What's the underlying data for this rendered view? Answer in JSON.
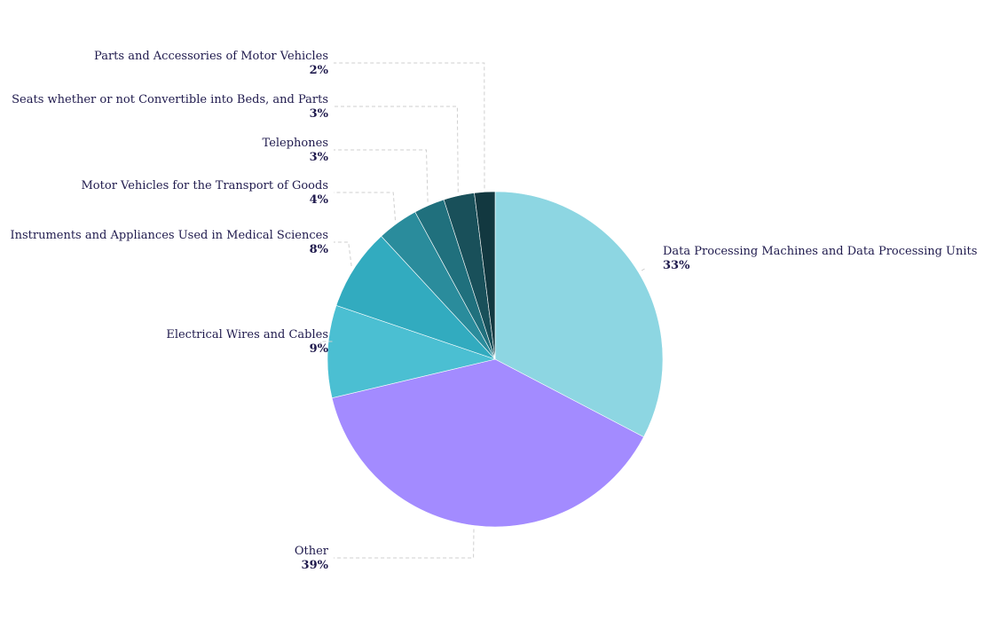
{
  "chart_data": {
    "type": "pie",
    "title": "",
    "slices": [
      {
        "label": "Data Processing Machines and Data Processing Units",
        "value": 33,
        "display": "33%",
        "color": "#8dd6e2"
      },
      {
        "label": "Other",
        "value": 39,
        "display": "39%",
        "color": "#a38bff"
      },
      {
        "label": "Electrical Wires and Cables",
        "value": 9,
        "display": "9%",
        "color": "#4bbfd2"
      },
      {
        "label": "Instruments and Appliances Used in Medical Sciences",
        "value": 8,
        "display": "8%",
        "color": "#32abbf"
      },
      {
        "label": "Motor Vehicles for the Transport of Goods",
        "value": 4,
        "display": "4%",
        "color": "#2a8c9c"
      },
      {
        "label": "Telephones",
        "value": 3,
        "display": "3%",
        "color": "#20707d"
      },
      {
        "label": "Seats whether or not Convertible into Beds, and Parts",
        "value": 3,
        "display": "3%",
        "color": "#19505a"
      },
      {
        "label": "Parts and Accessories of Motor Vehicles",
        "value": 2,
        "display": "2%",
        "color": "#123840"
      }
    ],
    "start_angle": "12 o'clock",
    "direction": "clockwise",
    "legend": "none",
    "labels": "outside with leader lines"
  }
}
